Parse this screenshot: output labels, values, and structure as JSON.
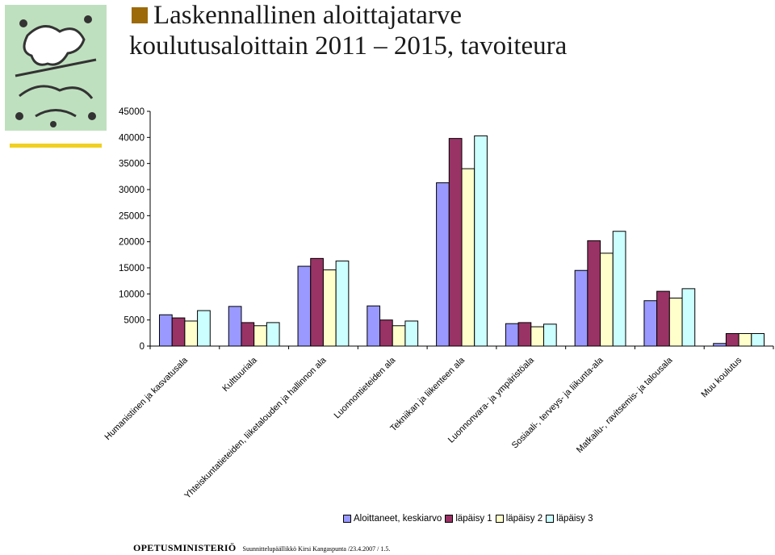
{
  "title": {
    "line1": "Laskennallinen aloittajatarve",
    "line2": "koulutusaloittain 2011 – 2015, tavoiteura"
  },
  "colors": {
    "accent_bullet": "#9c6a08",
    "logo_bar": "#f0d020",
    "logo_fill": "#bfe0bf"
  },
  "footer": {
    "organization": "OPETUSMINISTERIÖ",
    "note": "Suunnittelupäällikkö Kirsi Kangaspunta /23.4.2007 / 1.5."
  },
  "chart_data": {
    "type": "bar",
    "title": "",
    "xlabel": "",
    "ylabel": "",
    "ylim": [
      0,
      45000
    ],
    "yticks": [
      0,
      5000,
      10000,
      15000,
      20000,
      25000,
      30000,
      35000,
      40000,
      45000
    ],
    "grid": false,
    "legend_position": "bottom",
    "categories": [
      "Humanistinen ja kasvatusala",
      "Kulttuuriala",
      "Yhteiskuntatieteiden, liiketalouden ja hallinnon ala",
      "Luonnontieteiden ala",
      "Tekniikan ja liikenteen ala",
      "Luonnonvara- ja ympäristöala",
      "Sosiaali-, terveys- ja liikunta-ala",
      "Matkailu-, ravitsemis- ja talousala",
      "Muu koulutus"
    ],
    "series": [
      {
        "name": "Aloittaneet, keskiarvo",
        "color": "#9999ff",
        "values": [
          6000,
          7600,
          15300,
          7700,
          31300,
          4300,
          14500,
          8700,
          500
        ]
      },
      {
        "name": "läpäisy 1",
        "color": "#993366",
        "values": [
          5400,
          4500,
          16800,
          5000,
          39800,
          4500,
          20200,
          10500,
          2400
        ]
      },
      {
        "name": "läpäisy 2",
        "color": "#ffffcc",
        "values": [
          4800,
          3900,
          14600,
          3900,
          34000,
          3700,
          17800,
          9200,
          2400
        ]
      },
      {
        "name": "läpäisy 3",
        "color": "#ccffff",
        "values": [
          6800,
          4500,
          16300,
          4800,
          40300,
          4200,
          22000,
          11000,
          2400
        ]
      }
    ]
  }
}
